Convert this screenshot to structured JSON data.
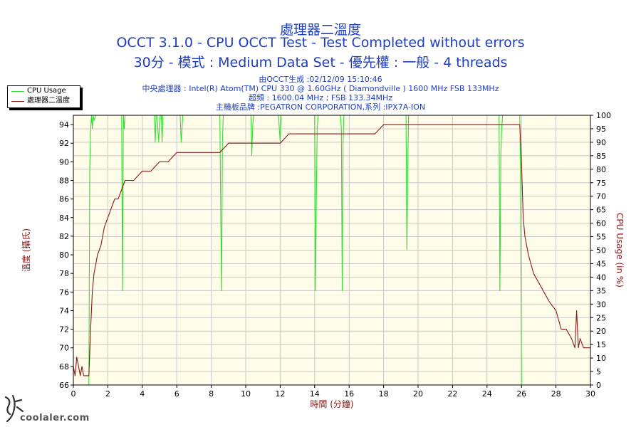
{
  "header": {
    "title": "處理器二溫度",
    "subtitle1": "OCCT 3.1.0 - CPU OCCT Test - Test Completed without errors",
    "subtitle2": "30分 - 模式 : Medium Data Set - 優先權 : 一般 - 4 threads",
    "info_lines": [
      "由OCCT生成 :02/12/09 15:10:46",
      "中央處理器 : Intel(R) Atom(TM) CPU 330 @ 1.60GHz ( Diamondville ) 1600 MHz FSB 133MHz",
      "超頻 : 1600.04 MHz ; FSB 133.34MHz",
      "主機板品牌 :PEGATRON CORPORATION,系列 :IPX7A-ION"
    ]
  },
  "watermark": {
    "text": "coolaler.com"
  },
  "colors": {
    "temperature": "#8b1a1a",
    "cpu_usage": "#33dd33",
    "plot_bg": "#fffcea",
    "grid": "#c8c8c8",
    "title": "#1f3fbf"
  },
  "chart_data": {
    "type": "line",
    "xlabel": "時間 (分鐘)",
    "ylabel_left": "溫度 (攝氏)",
    "ylabel_right": "CPU Usage (in %)",
    "x_ticks": [
      0,
      2,
      4,
      6,
      8,
      10,
      12,
      14,
      16,
      18,
      20,
      22,
      24,
      26,
      28,
      30
    ],
    "y_left_ticks": [
      66,
      68,
      70,
      72,
      74,
      76,
      78,
      80,
      82,
      84,
      86,
      88,
      90,
      92,
      94
    ],
    "y_right_ticks": [
      0,
      5,
      10,
      15,
      20,
      25,
      30,
      35,
      40,
      45,
      50,
      55,
      60,
      65,
      70,
      75,
      80,
      85,
      90,
      95,
      100
    ],
    "xlim": [
      0,
      30
    ],
    "ylim_left": [
      66,
      95
    ],
    "ylim_right": [
      0,
      100
    ],
    "grid": true,
    "legend": "top-left, outside plot",
    "series": [
      {
        "name": "CPU Usage",
        "axis": "right",
        "color": "#33dd33",
        "x": [
          0,
          0.9,
          0.95,
          1.0,
          1.05,
          1.1,
          1.15,
          1.2,
          1.3,
          2.8,
          2.85,
          2.9,
          2.95,
          3.0,
          4.7,
          4.75,
          4.8,
          4.85,
          4.9,
          4.95,
          5.0,
          5.05,
          5.1,
          5.15,
          5.2,
          6.2,
          6.25,
          6.3,
          6.35,
          6.4,
          8.5,
          8.55,
          8.6,
          8.65,
          8.7,
          10.3,
          10.35,
          10.4,
          10.45,
          10.5,
          11.9,
          11.95,
          12.0,
          12.05,
          12.1,
          14.0,
          14.05,
          14.1,
          14.15,
          14.2,
          15.5,
          15.55,
          15.6,
          15.65,
          15.7,
          19.3,
          19.35,
          19.4,
          19.45,
          19.5,
          24.7,
          24.75,
          24.8,
          24.85,
          24.9,
          25.9,
          25.95,
          26.0,
          26.05,
          30
        ],
        "y": [
          0,
          0,
          80,
          95,
          100,
          95,
          100,
          98,
          100,
          100,
          35,
          100,
          95,
          100,
          100,
          90,
          100,
          100,
          95,
          90,
          98,
          100,
          100,
          90,
          100,
          100,
          90,
          95,
          100,
          100,
          100,
          65,
          35,
          90,
          100,
          100,
          85,
          95,
          100,
          100,
          100,
          95,
          90,
          100,
          100,
          100,
          35,
          70,
          95,
          100,
          100,
          95,
          35,
          90,
          100,
          100,
          50,
          80,
          100,
          100,
          100,
          35,
          85,
          95,
          100,
          100,
          70,
          0,
          0,
          0
        ]
      },
      {
        "name": "處理器二溫度",
        "axis": "left",
        "color": "#8b1a1a",
        "x": [
          0,
          0.1,
          0.2,
          0.3,
          0.4,
          0.5,
          0.6,
          0.7,
          0.8,
          0.9,
          1.0,
          1.05,
          1.1,
          1.2,
          1.3,
          1.4,
          1.6,
          1.8,
          2.0,
          2.2,
          2.4,
          2.6,
          2.8,
          3.0,
          3.2,
          3.5,
          4.0,
          4.5,
          5.0,
          5.5,
          6.0,
          6.5,
          7.0,
          7.5,
          8.0,
          8.5,
          9.0,
          9.5,
          10.0,
          10.5,
          11.0,
          11.5,
          12.0,
          12.5,
          13.0,
          13.5,
          14.0,
          14.5,
          15.0,
          15.5,
          16.0,
          16.5,
          17.0,
          17.5,
          18.0,
          18.5,
          19.0,
          19.5,
          20.0,
          20.5,
          21.0,
          21.5,
          22.0,
          22.5,
          23.0,
          23.5,
          24.0,
          24.5,
          25.0,
          25.5,
          25.9,
          26.0,
          26.1,
          26.2,
          26.4,
          26.7,
          27.0,
          27.3,
          27.6,
          28.0,
          28.3,
          28.6,
          28.9,
          29.1,
          29.2,
          29.3,
          29.4,
          29.6,
          29.8,
          30.0
        ],
        "y": [
          68,
          67,
          69,
          68,
          67,
          68,
          67,
          67,
          67,
          67,
          72,
          74,
          76,
          78,
          79,
          80,
          81,
          83,
          84,
          85,
          86,
          86,
          87,
          88,
          88,
          88,
          89,
          89,
          90,
          90,
          91,
          91,
          91,
          91,
          91,
          91,
          92,
          92,
          92,
          92,
          92,
          92,
          92,
          93,
          93,
          93,
          93,
          93,
          93,
          93,
          93,
          93,
          93,
          93,
          94,
          94,
          94,
          94,
          94,
          94,
          94,
          94,
          94,
          94,
          94,
          94,
          94,
          94,
          94,
          94,
          94,
          90,
          84,
          82,
          80,
          78,
          77,
          76,
          75,
          74,
          72,
          72,
          71,
          70,
          74,
          70,
          71,
          70,
          70,
          70
        ]
      }
    ]
  }
}
